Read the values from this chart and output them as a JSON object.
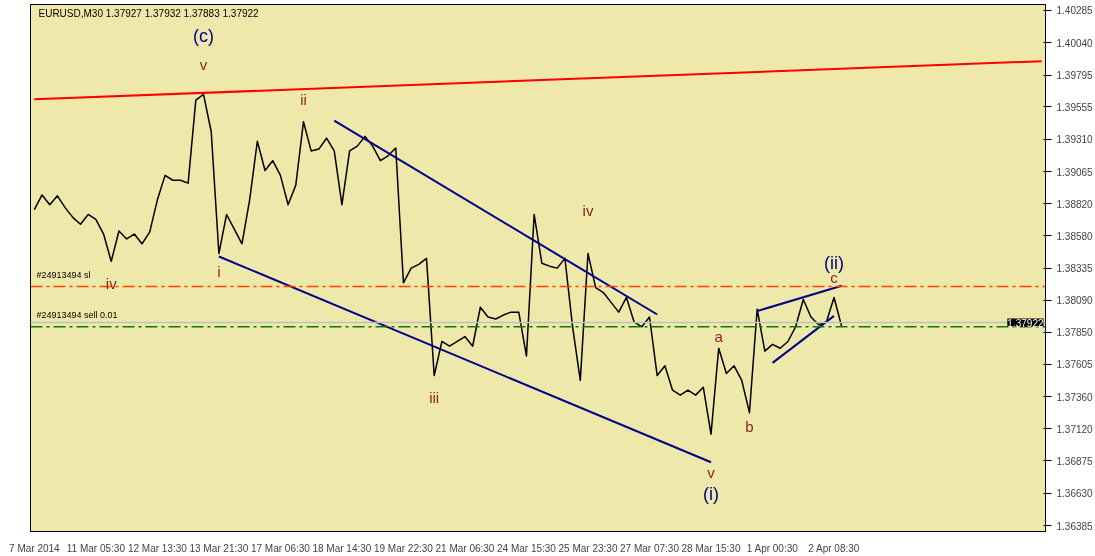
{
  "chart_data": {
    "type": "line",
    "title": "EURUSD,M30  1.37927 1.37932 1.37883 1.37922",
    "categories": [
      "7 Mar 2014",
      null,
      null,
      null,
      null,
      null,
      null,
      null,
      "11 Mar 05:30",
      null,
      null,
      null,
      null,
      null,
      null,
      null,
      "12 Mar 13:30",
      null,
      null,
      null,
      null,
      null,
      null,
      null,
      "13 Mar 21:30",
      null,
      null,
      null,
      null,
      null,
      null,
      null,
      "17 Mar 06:30",
      null,
      null,
      null,
      null,
      null,
      null,
      null,
      "18 Mar 14:30",
      null,
      null,
      null,
      null,
      null,
      null,
      null,
      "19 Mar 22:30",
      null,
      null,
      null,
      null,
      null,
      null,
      null,
      "21 Mar 06:30",
      null,
      null,
      null,
      null,
      null,
      null,
      null,
      "24 Mar 15:30",
      null,
      null,
      null,
      null,
      null,
      null,
      null,
      "25 Mar 23:30",
      null,
      null,
      null,
      null,
      null,
      null,
      null,
      "27 Mar 07:30",
      null,
      null,
      null,
      null,
      null,
      null,
      null,
      "28 Mar 15:30",
      null,
      null,
      null,
      null,
      null,
      null,
      null,
      "1 Apr 00:30",
      null,
      null,
      null,
      null,
      null,
      null,
      null,
      "2 Apr 08:30",
      null,
      null,
      null,
      null,
      null,
      null,
      null,
      null,
      null,
      null,
      null,
      null,
      null,
      null,
      null,
      null,
      null,
      null,
      null,
      null,
      null,
      null,
      null,
      null,
      null,
      null,
      null
    ],
    "series": [
      {
        "color": "#000000",
        "values": [
          1.38777,
          1.38888,
          1.38814,
          1.38881,
          1.38792,
          1.38718,
          1.38666,
          1.3874,
          1.38703,
          1.38592,
          1.38385,
          1.38615,
          1.38555,
          1.38592,
          1.38518,
          1.38607,
          1.38851,
          1.39036,
          1.38999,
          1.38999,
          1.38977,
          1.39605,
          1.39649,
          1.39368,
          1.38445,
          1.3874,
          1.38629,
          1.38518,
          1.38851,
          1.39294,
          1.39073,
          1.39147,
          1.39036,
          1.38814,
          1.38962,
          1.39442,
          1.39221,
          1.39235,
          1.39317,
          1.39221,
          1.38814,
          1.39221,
          1.39257,
          1.39331,
          1.39257,
          1.39147,
          1.39184,
          1.39243,
          1.38223,
          1.38334,
          1.38363,
          1.38408,
          1.37521,
          1.37779,
          1.37743,
          1.37779,
          1.37816,
          1.37743,
          1.38038,
          1.37964,
          1.37949,
          1.37979,
          1.38001,
          1.38001,
          1.37669,
          1.3874,
          1.38371,
          1.38349,
          1.38334,
          1.38408,
          1.3789,
          1.37484,
          1.38445,
          1.38186,
          1.38149,
          1.38075,
          1.38001,
          1.38112,
          1.37927,
          1.3789,
          1.37964,
          1.37521,
          1.37595,
          1.3741,
          1.37373,
          1.3741,
          1.37373,
          1.37432,
          1.37077,
          1.37728,
          1.37536,
          1.37595,
          1.37484,
          1.3724,
          1.38023,
          1.37706,
          1.37757,
          1.37728,
          1.37779,
          1.3789,
          1.38097,
          1.37964,
          1.37905,
          1.37927,
          1.38112,
          1.3789,
          null,
          null,
          null,
          null,
          null,
          null,
          null,
          null,
          null,
          null,
          null,
          null,
          null,
          null,
          null,
          null,
          null,
          null,
          null,
          null,
          null,
          null,
          null,
          null,
          null,
          null
        ]
      },
      {
        "type": "line",
        "color": "#ff0000",
        "values": [
          1.39612,
          null,
          null,
          null,
          null,
          null,
          null,
          null,
          null,
          null,
          null,
          null,
          null,
          null,
          null,
          null,
          null,
          null,
          null,
          null,
          null,
          null,
          null,
          null,
          null,
          null,
          null,
          null,
          null,
          null,
          null,
          null,
          null,
          null,
          null,
          null,
          null,
          null,
          null,
          null,
          null,
          null,
          null,
          null,
          null,
          null,
          null,
          null,
          null,
          null,
          null,
          null,
          null,
          null,
          null,
          null,
          null,
          null,
          null,
          null,
          null,
          null,
          null,
          null,
          null,
          null,
          null,
          null,
          null,
          null,
          null,
          null,
          null,
          null,
          null,
          null,
          null,
          null,
          null,
          null,
          null,
          null,
          null,
          null,
          null,
          null,
          null,
          null,
          null,
          null,
          null,
          null,
          null,
          null,
          null,
          null,
          null,
          null,
          null,
          null,
          null,
          null,
          null,
          null,
          null,
          null,
          null,
          null,
          null,
          null,
          null,
          null,
          null,
          null,
          null,
          null,
          null,
          null,
          null,
          null,
          null,
          null,
          null,
          null,
          null,
          null,
          null,
          null,
          null,
          null,
          null,
          1.399
        ]
      },
      {
        "type": "line",
        "color": "#00008b",
        "values": [
          null,
          null,
          null,
          null,
          null,
          null,
          null,
          null,
          null,
          null,
          null,
          null,
          null,
          null,
          null,
          null,
          null,
          null,
          null,
          null,
          null,
          null,
          null,
          null,
          null,
          null,
          null,
          null,
          null,
          null,
          null,
          null,
          null,
          null,
          null,
          null,
          null,
          null,
          null,
          1.39451,
          null,
          null,
          null,
          null,
          null,
          null,
          null,
          null,
          null,
          null,
          null,
          null,
          null,
          null,
          null,
          null,
          null,
          null,
          null,
          null,
          null,
          null,
          null,
          null,
          null,
          null,
          null,
          null,
          null,
          null,
          null,
          null,
          null,
          null,
          null,
          null,
          null,
          null,
          null,
          null,
          null,
          1.37983,
          null,
          null,
          null,
          null,
          null,
          null,
          null,
          null,
          null,
          null,
          null,
          null,
          null,
          null,
          null,
          null,
          null,
          null,
          null,
          null,
          null,
          null,
          null,
          null,
          null,
          null,
          null,
          null,
          null,
          null,
          null,
          null,
          null,
          null,
          null,
          null,
          null,
          null,
          null,
          null,
          null,
          null,
          null,
          null,
          null,
          null,
          null,
          null,
          null,
          null
        ]
      },
      {
        "type": "line",
        "color": "#00008b",
        "values": [
          null,
          null,
          null,
          null,
          null,
          null,
          null,
          null,
          null,
          null,
          null,
          null,
          null,
          null,
          null,
          null,
          null,
          null,
          null,
          null,
          null,
          null,
          null,
          null,
          1.38422,
          null,
          null,
          null,
          null,
          null,
          null,
          null,
          null,
          null,
          null,
          null,
          null,
          null,
          null,
          null,
          null,
          null,
          null,
          null,
          null,
          null,
          null,
          null,
          null,
          null,
          null,
          null,
          null,
          null,
          null,
          null,
          null,
          null,
          null,
          null,
          null,
          null,
          null,
          null,
          null,
          null,
          null,
          null,
          null,
          null,
          null,
          null,
          null,
          null,
          null,
          null,
          null,
          null,
          null,
          null,
          null,
          null,
          null,
          null,
          null,
          null,
          null,
          null,
          1.36865,
          null,
          null,
          null,
          null,
          null,
          null,
          null,
          null,
          null,
          null,
          null,
          null,
          null,
          null,
          null,
          null,
          null,
          null,
          null,
          null,
          null,
          null,
          null,
          null,
          null,
          null,
          null,
          null,
          null,
          null,
          null,
          null,
          null,
          null,
          null,
          null,
          null,
          null,
          null,
          null,
          null,
          null,
          null
        ]
      },
      {
        "type": "line",
        "color": "#00008b",
        "values": [
          null,
          null,
          null,
          null,
          null,
          null,
          null,
          null,
          null,
          null,
          null,
          null,
          null,
          null,
          null,
          null,
          null,
          null,
          null,
          null,
          null,
          null,
          null,
          null,
          null,
          null,
          null,
          null,
          null,
          null,
          null,
          null,
          null,
          null,
          null,
          null,
          null,
          null,
          null,
          null,
          null,
          null,
          null,
          null,
          null,
          null,
          null,
          null,
          null,
          null,
          null,
          null,
          null,
          null,
          null,
          null,
          null,
          null,
          null,
          null,
          null,
          null,
          null,
          null,
          null,
          null,
          null,
          null,
          null,
          null,
          null,
          null,
          null,
          null,
          null,
          null,
          null,
          null,
          null,
          null,
          null,
          null,
          null,
          null,
          null,
          null,
          null,
          null,
          null,
          null,
          null,
          null,
          null,
          null,
          1.38009,
          null,
          null,
          null,
          null,
          null,
          null,
          null,
          null,
          null,
          null,
          1.38201,
          null,
          null,
          null,
          null,
          null,
          null,
          null,
          null,
          null,
          null,
          null,
          null,
          null,
          null,
          null,
          null,
          null,
          null,
          null,
          null,
          null,
          null,
          null,
          null,
          null,
          null
        ]
      },
      {
        "type": "line",
        "color": "#00008b",
        "values": [
          null,
          null,
          null,
          null,
          null,
          null,
          null,
          null,
          null,
          null,
          null,
          null,
          null,
          null,
          null,
          null,
          null,
          null,
          null,
          null,
          null,
          null,
          null,
          null,
          null,
          null,
          null,
          null,
          null,
          null,
          null,
          null,
          null,
          null,
          null,
          null,
          null,
          null,
          null,
          null,
          null,
          null,
          null,
          null,
          null,
          null,
          null,
          null,
          null,
          null,
          null,
          null,
          null,
          null,
          null,
          null,
          null,
          null,
          null,
          null,
          null,
          null,
          null,
          null,
          null,
          null,
          null,
          null,
          null,
          null,
          null,
          null,
          null,
          null,
          null,
          null,
          null,
          null,
          null,
          null,
          null,
          null,
          null,
          null,
          null,
          null,
          null,
          null,
          null,
          null,
          null,
          null,
          null,
          null,
          null,
          null,
          1.37617,
          null,
          null,
          null,
          null,
          null,
          null,
          null,
          1.37973,
          null,
          null,
          null,
          null,
          null,
          null,
          null,
          null,
          null,
          null,
          null,
          null,
          null,
          null,
          null,
          null,
          null,
          null,
          null,
          null,
          null,
          null,
          null,
          null,
          null,
          null,
          null
        ]
      }
    ],
    "ylim": [
      1.36341,
      1.40329
    ],
    "yticks": [
      1.36385,
      {
        "value": 1.3663,
        "label": "1.36630"
      },
      1.36875,
      {
        "value": 1.3712,
        "label": "1.37120"
      },
      {
        "value": 1.3736,
        "label": "1.37360"
      },
      1.37605,
      {
        "value": 1.3785,
        "label": "1.37850"
      },
      {
        "value": 1.3809,
        "label": "1.38090"
      },
      1.38335,
      {
        "value": 1.3858,
        "label": "1.38580"
      },
      {
        "value": 1.3882,
        "label": "1.38820"
      },
      1.39065,
      {
        "value": 1.3931,
        "label": "1.39310"
      },
      1.39555,
      1.39795,
      {
        "value": 1.4004,
        "label": "1.40040"
      },
      1.40285
    ],
    "ref_lines": [
      {
        "axis": "y",
        "value": 1.38195,
        "label": "#24913494 sl",
        "color": "#ff4500",
        "line_style": "dashed"
      },
      {
        "axis": "y",
        "value": 1.3789,
        "label": "#24913494 sell 0.01",
        "color": "#008000",
        "line_style": "dashed"
      },
      {
        "axis": "y",
        "value": 1.37922,
        "label": "1.37922",
        "color": "#c0c0c0",
        "line_style": "solid"
      }
    ],
    "annotations": [
      "(c)",
      "v",
      "ii",
      "i",
      "iv",
      "iii",
      "iv",
      "a",
      "b",
      "v",
      "(i)",
      {
        "text": "(ii)",
        "x": "2 Apr 08:30",
        "y": 1.38112
      },
      {
        "text": "c",
        "x": "2 Apr 08:30",
        "y": 1.38112
      }
    ],
    "grid": false
  }
}
